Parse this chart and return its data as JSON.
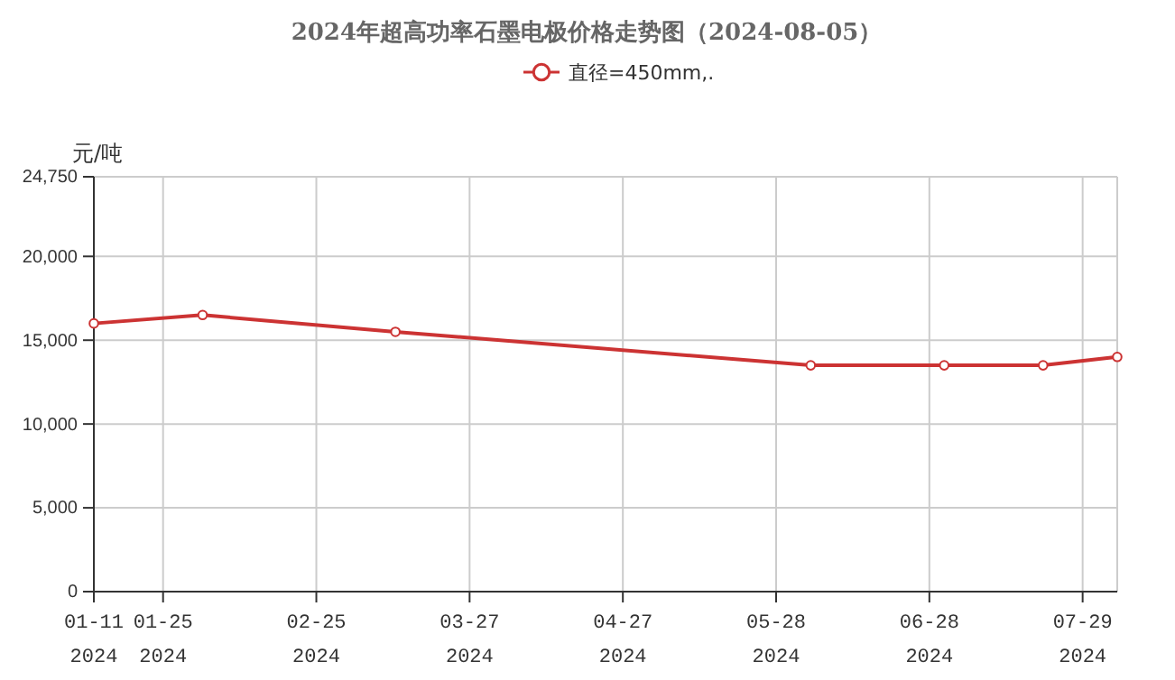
{
  "chart_data": {
    "type": "line",
    "title": "2024年超高功率石墨电极价格走势图（2024-08-05）",
    "ylabel": "元/吨",
    "x": [
      "2024-01-11",
      "2024-02-02",
      "2024-03-12",
      "2024-06-04",
      "2024-07-01",
      "2024-07-21",
      "2024-08-05"
    ],
    "series": [
      {
        "name": "直径=450mm,.",
        "color": "#cc3333",
        "values": [
          16000,
          16500,
          15500,
          13500,
          13500,
          13500,
          14000
        ]
      }
    ],
    "xlim": [
      "2024-01-11",
      "2024-08-05"
    ],
    "xticks": [
      {
        "value": "2024-01-11",
        "label": "01-11\n2024"
      },
      {
        "value": "2024-01-25",
        "label": "01-25\n2024"
      },
      {
        "value": "2024-02-25",
        "label": "02-25\n2024"
      },
      {
        "value": "2024-03-27",
        "label": "03-27\n2024"
      },
      {
        "value": "2024-04-27",
        "label": "04-27\n2024"
      },
      {
        "value": "2024-05-28",
        "label": "05-28\n2024"
      },
      {
        "value": "2024-06-28",
        "label": "06-28\n2024"
      },
      {
        "value": "2024-07-29",
        "label": "07-29\n2024"
      }
    ],
    "ylim": [
      0,
      24750
    ],
    "yticks": [
      0,
      {
        "value": 5000,
        "label": "5,000"
      },
      {
        "value": 10000,
        "label": "10,000"
      },
      {
        "value": 15000,
        "label": "15,000"
      },
      {
        "value": 20000,
        "label": "20,000"
      },
      {
        "value": 24750,
        "label": "24,750"
      }
    ],
    "grid": true,
    "legend": "top",
    "marker": "circle",
    "line_style": "solid"
  }
}
